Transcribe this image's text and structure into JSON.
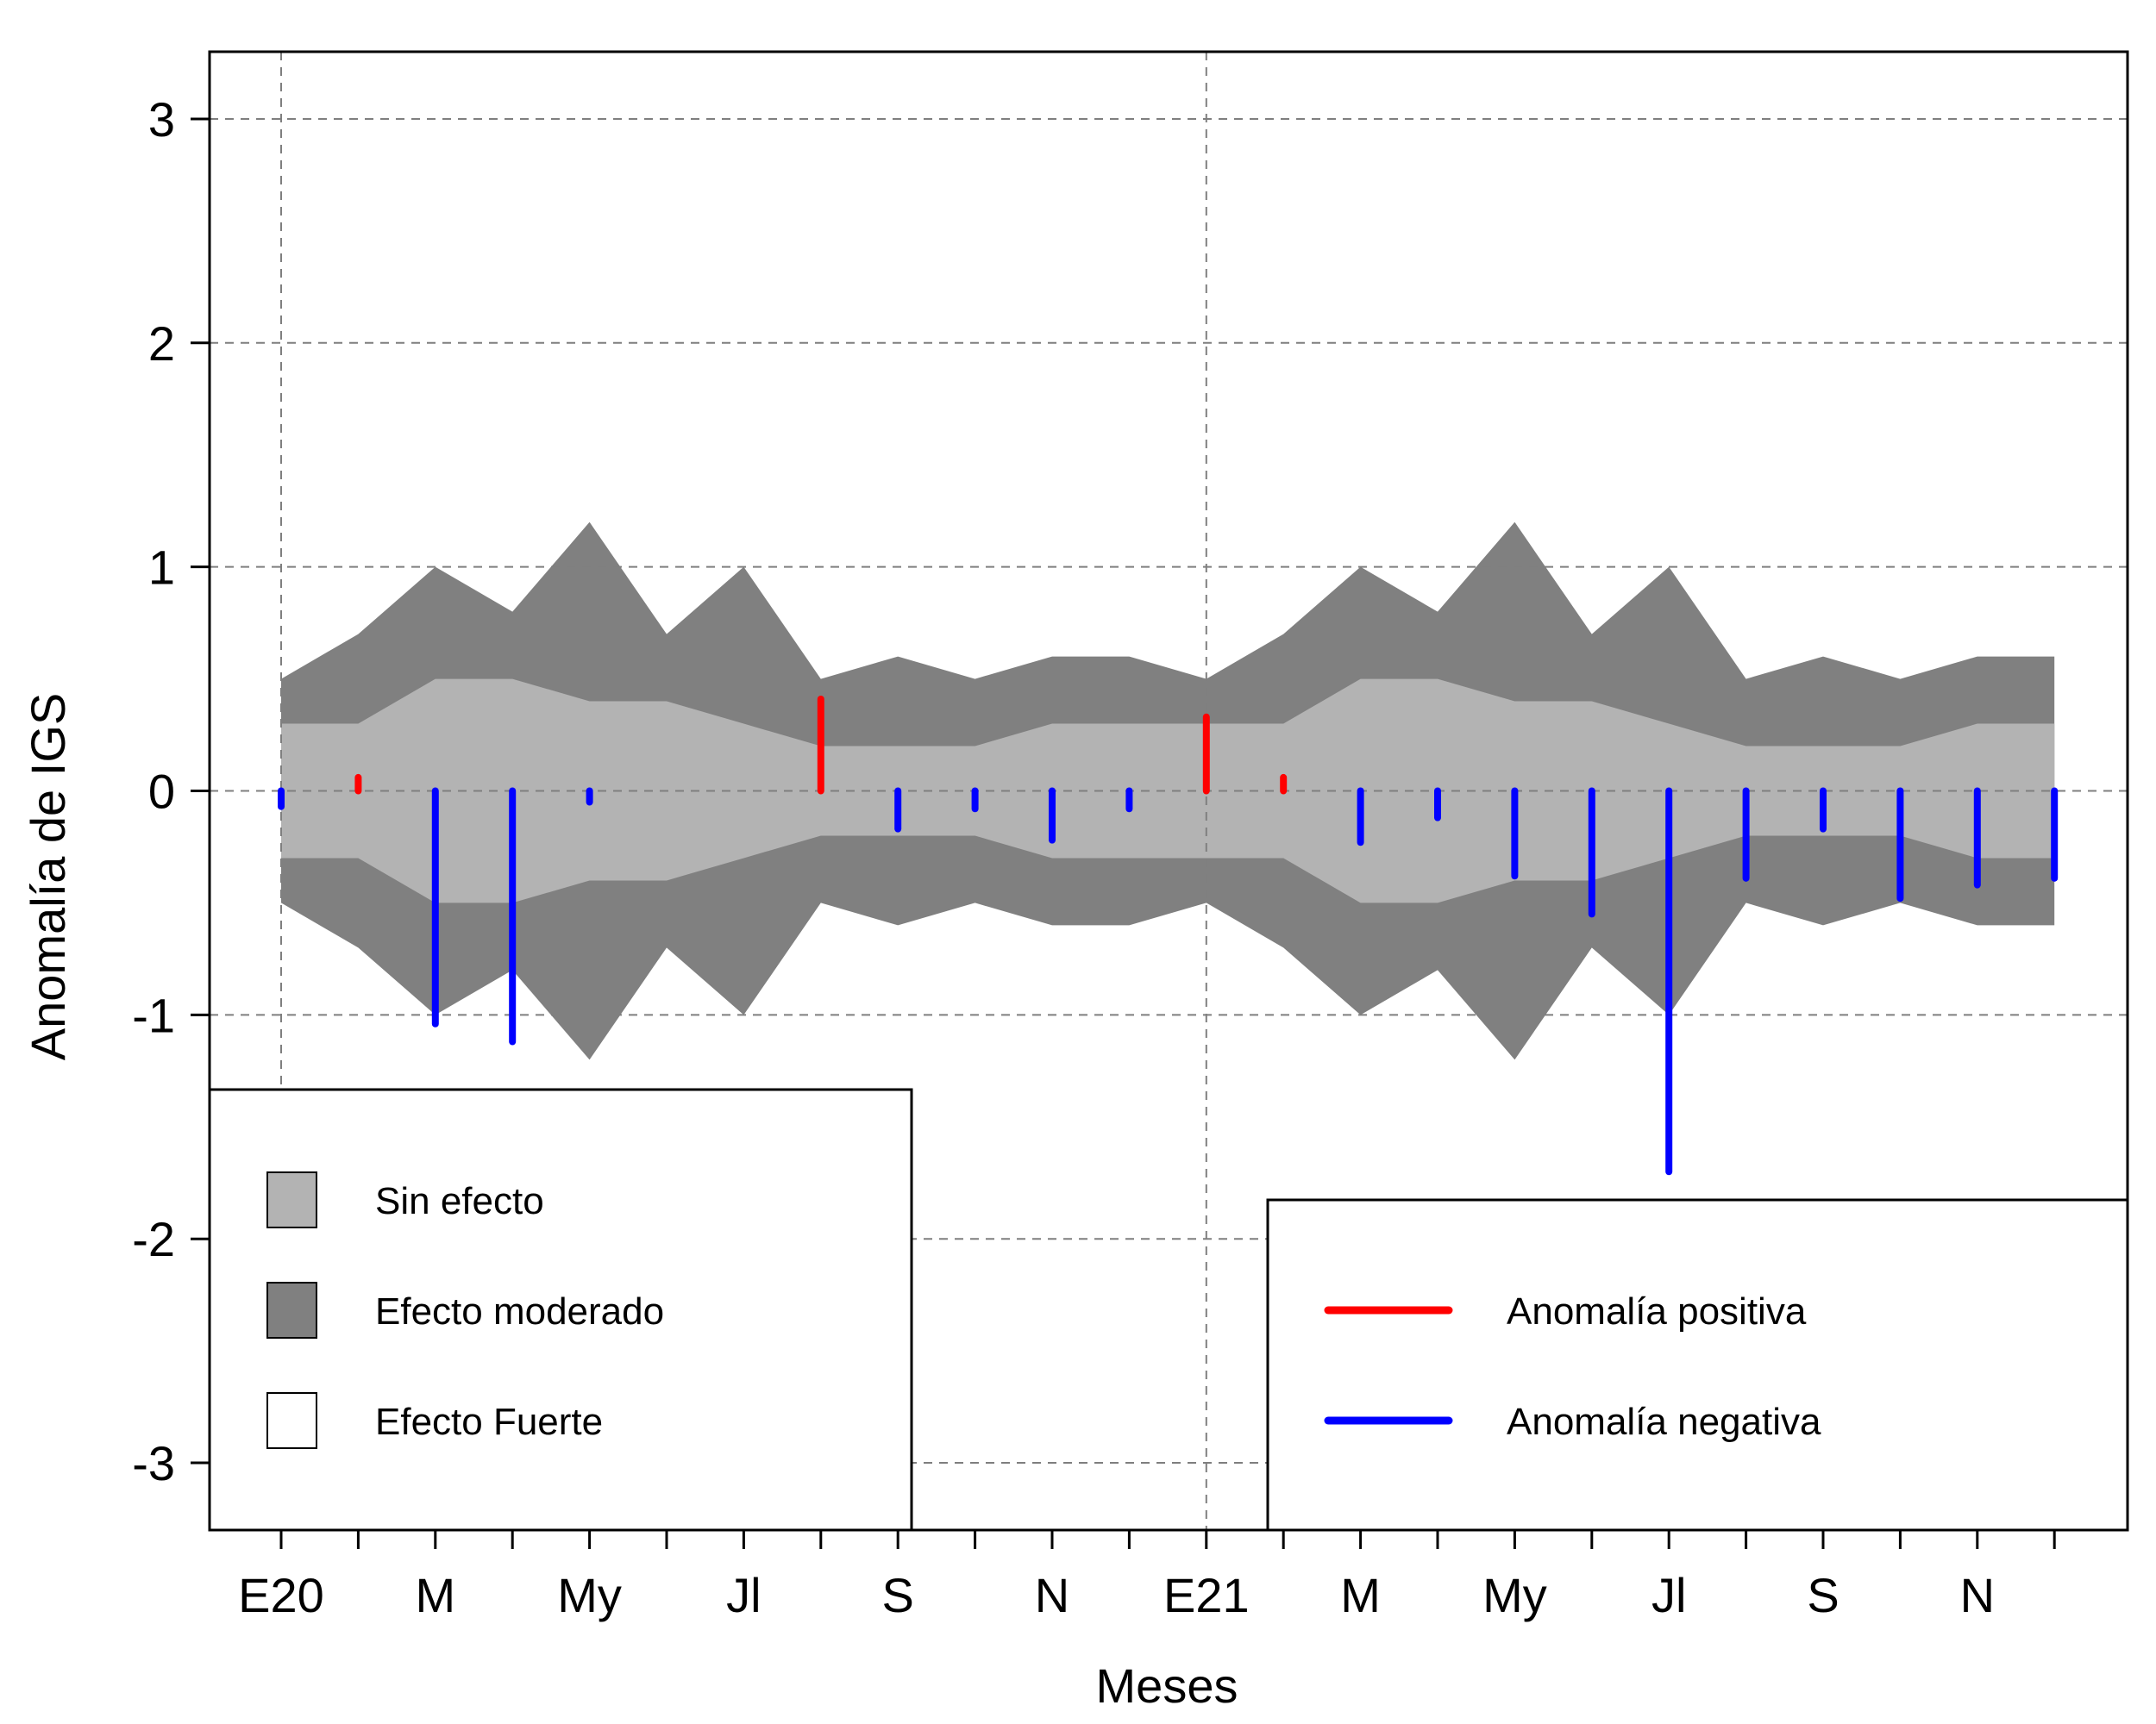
{
  "chart_data": {
    "type": "bar",
    "xlabel": "Meses",
    "ylabel": "Anomalía de IGS",
    "ylim": [
      -3.3,
      3.3
    ],
    "yticks": [
      -3,
      -2,
      -1,
      0,
      1,
      2,
      3
    ],
    "ytick_labels": [
      "-3",
      "-2",
      "-1",
      "0",
      "1",
      "2",
      "3"
    ],
    "xtick_labels": [
      "E20",
      "",
      "M",
      "",
      "My",
      "",
      "Jl",
      "",
      "S",
      "",
      "N",
      "",
      "E21",
      "",
      "M",
      "",
      "My",
      "",
      "Jl",
      "",
      "S",
      "",
      "N",
      ""
    ],
    "months_index": [
      1,
      2,
      3,
      4,
      5,
      6,
      7,
      8,
      9,
      10,
      11,
      12,
      13,
      14,
      15,
      16,
      17,
      18,
      19,
      20,
      21,
      22,
      23,
      24
    ],
    "vertical_grid_at_month": [
      1,
      13
    ],
    "grid": true,
    "bands": {
      "sin_efecto_upper": [
        0.3,
        0.3,
        0.5,
        0.5,
        0.4,
        0.4,
        0.3,
        0.2,
        0.2,
        0.2,
        0.3,
        0.3,
        0.3,
        0.3,
        0.5,
        0.5,
        0.4,
        0.4,
        0.3,
        0.2,
        0.2,
        0.2,
        0.3,
        0.3
      ],
      "sin_efecto_lower": [
        -0.3,
        -0.3,
        -0.5,
        -0.5,
        -0.4,
        -0.4,
        -0.3,
        -0.2,
        -0.2,
        -0.2,
        -0.3,
        -0.3,
        -0.3,
        -0.3,
        -0.5,
        -0.5,
        -0.4,
        -0.4,
        -0.3,
        -0.2,
        -0.2,
        -0.2,
        -0.3,
        -0.3
      ],
      "moderado_upper": [
        0.5,
        0.7,
        1.0,
        0.8,
        1.2,
        0.7,
        1.0,
        0.5,
        0.6,
        0.5,
        0.6,
        0.6,
        0.5,
        0.7,
        1.0,
        0.8,
        1.2,
        0.7,
        1.0,
        0.5,
        0.6,
        0.5,
        0.6,
        0.6
      ],
      "moderado_lower": [
        -0.5,
        -0.7,
        -1.0,
        -0.8,
        -1.2,
        -0.7,
        -1.0,
        -0.5,
        -0.6,
        -0.5,
        -0.6,
        -0.6,
        -0.5,
        -0.7,
        -1.0,
        -0.8,
        -1.2,
        -0.7,
        -1.0,
        -0.5,
        -0.6,
        -0.5,
        -0.6,
        -0.6
      ]
    },
    "series": [
      {
        "name": "Anomalía IGS",
        "values": [
          -0.07,
          0.06,
          -1.04,
          -1.12,
          -0.05,
          null,
          null,
          0.41,
          -0.17,
          -0.08,
          -0.22,
          -0.08,
          0.33,
          0.06,
          -0.23,
          -0.12,
          -0.38,
          -0.55,
          -1.7,
          -0.39,
          -0.17,
          -0.48,
          -0.42,
          -0.39
        ]
      }
    ],
    "colors": {
      "positive": "#ff0000",
      "negative": "#0000ff",
      "sin_efecto": "#b3b3b3",
      "moderado": "#808080",
      "fuerte": "#ffffff",
      "grid": "#7f7f7f"
    },
    "legend_left": {
      "placement": "bottom-left",
      "items": [
        {
          "label": "Sin efecto",
          "color": "#b3b3b3"
        },
        {
          "label": "Efecto moderado",
          "color": "#808080"
        },
        {
          "label": "Efecto Fuerte",
          "color": "#ffffff"
        }
      ]
    },
    "legend_right": {
      "placement": "bottom-right",
      "items": [
        {
          "label": "Anomalía positiva",
          "color": "#ff0000"
        },
        {
          "label": "Anomalía negativa",
          "color": "#0000ff"
        }
      ]
    }
  }
}
